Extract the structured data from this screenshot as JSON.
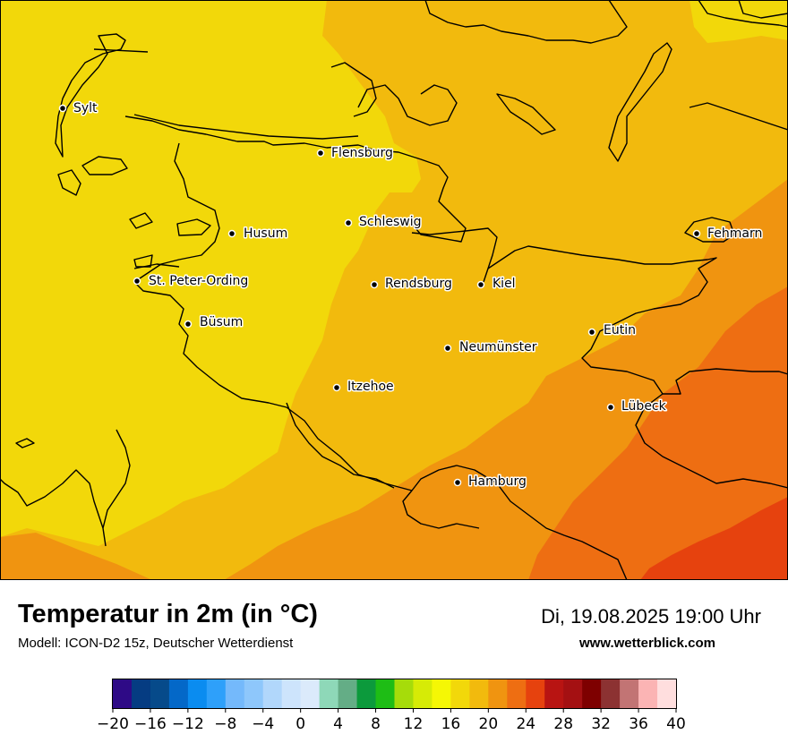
{
  "map": {
    "cities": [
      {
        "name": "Sylt"
      },
      {
        "name": "Flensburg"
      },
      {
        "name": "Schleswig"
      },
      {
        "name": "Husum"
      },
      {
        "name": "Fehmarn"
      },
      {
        "name": "St. Peter-Ording"
      },
      {
        "name": "Rendsburg"
      },
      {
        "name": "Kiel"
      },
      {
        "name": "Büsum"
      },
      {
        "name": "Eutin"
      },
      {
        "name": "Neumünster"
      },
      {
        "name": "Itzehoe"
      },
      {
        "name": "Lübeck"
      },
      {
        "name": "Hamburg"
      }
    ],
    "colors": {
      "temp_16_18": "#f2d80a",
      "temp_18_20": "#f2ba0d",
      "temp_20_22": "#f09410",
      "temp_22_24": "#ee6e12",
      "temp_24_26": "#e6420e",
      "coastline": "#000000"
    }
  },
  "footer": {
    "title": "Temperatur in 2m (in °C)",
    "subtitle": "Modell: ICON-D2 15z, Deutscher Wetterdienst",
    "datetime": "Di, 19.08.2025 19:00 Uhr",
    "website": "www.wetterblick.com"
  },
  "legend": {
    "unit": "°C",
    "min": -20,
    "max": 40,
    "step": 2,
    "tick_labels": [
      "−20",
      "−16",
      "−12",
      "−8",
      "−4",
      "0",
      "4",
      "8",
      "12",
      "16",
      "20",
      "24",
      "28",
      "32",
      "36",
      "40"
    ],
    "colors": [
      "#2e0a86",
      "#053c82",
      "#064a8a",
      "#0468c8",
      "#0a8cf0",
      "#2ea0fa",
      "#74b9fb",
      "#8ec7fb",
      "#b1d7fb",
      "#cde4fc",
      "#dbeafb",
      "#8ed8b8",
      "#64ad86",
      "#0c9a3c",
      "#1ebd15",
      "#a6dc0a",
      "#d6eb06",
      "#f5f705",
      "#f2d80a",
      "#f2ba0d",
      "#f09410",
      "#ee6e12",
      "#e6420e",
      "#b81412",
      "#a41012",
      "#7e0000",
      "#8c3232",
      "#c27474",
      "#fbb4b4",
      "#ffdede"
    ]
  }
}
